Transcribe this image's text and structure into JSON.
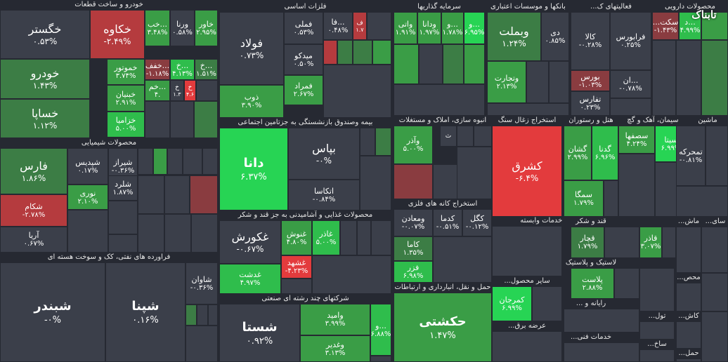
{
  "colors": {
    "background": "#262932",
    "neutral": "#3b3f4a",
    "g1": "#3c7d45",
    "g2": "#3a9d46",
    "g3": "#2fbd4c",
    "g4": "#27d454",
    "r1": "#8a3c40",
    "r2": "#b53b3e",
    "r3": "#e33b3d"
  },
  "logo": {
    "text": "تابناک"
  },
  "chart_data": {
    "type": "treemap",
    "sectors": [
      {
        "name": "خودرو و ساخت قطعات",
        "stocks": [
          {
            "name": "خگستر",
            "change": "۰.۵۳%",
            "color": "neutral"
          },
          {
            "name": "خکاوه",
            "change": "-۲.۴۹%",
            "color": "r2"
          },
          {
            "name": "خودرو",
            "change": "۱.۴۳%",
            "color": "g1"
          },
          {
            "name": "خموتور",
            "change": "۳.۷۴%",
            "color": "g2"
          },
          {
            "name": "خبنیان",
            "change": "۲.۹۱%",
            "color": "g2"
          },
          {
            "name": "خزامیا",
            "change": "۵.۰۰%",
            "color": "g3"
          },
          {
            "name": "خساپا",
            "change": "۱.۱۲%",
            "color": "g1"
          },
          {
            "name": "خب...",
            "change": "۳.۴۸%",
            "color": "g2"
          },
          {
            "name": "ورنا",
            "change": "۰.۵۸%",
            "color": "neutral"
          },
          {
            "name": "خاور",
            "change": "۲.۹۵%",
            "color": "g2"
          },
          {
            "name": "خفف...",
            "change": "-۱.۱۸%",
            "color": "r1"
          },
          {
            "name": "خ...",
            "change": "۴.۱۳%",
            "color": "g3"
          },
          {
            "name": "خ...",
            "change": "۱.۵۱%",
            "color": "g1"
          },
          {
            "name": "خم...",
            "change": "۴.",
            "color": "g2"
          },
          {
            "name": "خ",
            "change": "۴.۶",
            "color": "r3"
          },
          {
            "name": "خ",
            "change": "۱.۳",
            "color": "neutral"
          }
        ]
      },
      {
        "name": "محصولات شیمیایی",
        "stocks": [
          {
            "name": "فارس",
            "change": "۱.۸۶%",
            "color": "g1"
          },
          {
            "name": "شپدیس",
            "change": "۰.۱۷%",
            "color": "neutral"
          },
          {
            "name": "شیراز",
            "change": "-۰.۳۶%",
            "color": "neutral"
          },
          {
            "name": "نوری",
            "change": "۲.۱۰%",
            "color": "g2"
          },
          {
            "name": "شلرد",
            "change": "۱.۸۷%",
            "color": "neutral"
          },
          {
            "name": "شکام",
            "change": "-۲.۷۸%",
            "color": "r2"
          },
          {
            "name": "آریا",
            "change": "۰.۶۷%",
            "color": "neutral"
          }
        ]
      },
      {
        "name": "فراورده های نفتی، کک و سوخت هسته ای",
        "stocks": [
          {
            "name": "شبندر",
            "change": "-۰%",
            "color": "neutral"
          },
          {
            "name": "شپنا",
            "change": "۰.۱۶%",
            "color": "neutral"
          },
          {
            "name": "شاوان",
            "change": "-۰.۳۶%",
            "color": "neutral"
          }
        ]
      },
      {
        "name": "فلزات اساسی",
        "stocks": [
          {
            "name": "فولاد",
            "change": "۰.۷۳%",
            "color": "neutral"
          },
          {
            "name": "فملی",
            "change": "۰.۵۳%",
            "color": "neutral"
          },
          {
            "name": "میدکو",
            "change": "۰.۵۰%",
            "color": "neutral"
          },
          {
            "name": "فمراد",
            "change": "۲.۶۷%",
            "color": "g2"
          },
          {
            "name": "ذوب",
            "change": "۳.۹۰%",
            "color": "g2"
          },
          {
            "name": "فا...",
            "change": "۰.۴۸%",
            "color": "neutral"
          },
          {
            "name": "ف",
            "change": "۱.۷",
            "color": "r2"
          }
        ]
      },
      {
        "name": "سرمایه گذاریها",
        "stocks": [
          {
            "name": "واتی",
            "change": "۱.۹۱%",
            "color": "g2"
          },
          {
            "name": "ودانا",
            "change": "۱.۹۷%",
            "color": "g2"
          },
          {
            "name": "و...",
            "change": "۱.۷۸%",
            "color": "g2"
          },
          {
            "name": "و...",
            "change": "۶.۹۵%",
            "color": "g4"
          }
        ]
      },
      {
        "name": "بانکها و موسسات اعتباری",
        "stocks": [
          {
            "name": "وبملت",
            "change": "۱.۲۴%",
            "color": "g1"
          },
          {
            "name": "دی",
            "change": "۰.۸۵%",
            "color": "neutral"
          },
          {
            "name": "وتجارت",
            "change": "۲.۱۳%",
            "color": "g2"
          }
        ]
      },
      {
        "name": "فعالیتهای ک...",
        "stocks": [
          {
            "name": "کالا",
            "change": "-۰.۲۸%",
            "color": "neutral"
          },
          {
            "name": "فرابورس",
            "change": "۰.۲۵%",
            "color": "neutral"
          },
          {
            "name": "بورس",
            "change": "-۱.۰۳%",
            "color": "r1"
          },
          {
            "name": "ان...",
            "change": "-۰.۷۸%",
            "color": "neutral"
          },
          {
            "name": "تفارس",
            "change": "۰.۲۳%",
            "color": "neutral"
          }
        ]
      },
      {
        "name": "محصولات دارویی",
        "stocks": [
          {
            "name": "...سکت",
            "change": "-۱.۴۳%",
            "color": "r1"
          },
          {
            "name": "د...",
            "change": "۴.۹۹%",
            "color": "g3"
          }
        ]
      },
      {
        "name": "بیمه وصندوق بازنشستگی به جزتامین اجتماعی",
        "stocks": [
          {
            "name": "دانا",
            "change": "۶.۳۷%",
            "color": "g4"
          },
          {
            "name": "بپاس",
            "change": "-۰%",
            "color": "neutral"
          },
          {
            "name": "اتکاسا",
            "change": "-۰.۸۴%",
            "color": "neutral"
          }
        ]
      },
      {
        "name": "انبوه سازی، املاک و مستغلات",
        "stocks": [
          {
            "name": "وآذر",
            "change": "۵.۰۰%",
            "color": "g2"
          },
          {
            "name": "ث",
            "change": "",
            "color": "neutral"
          }
        ]
      },
      {
        "name": "استخراج زغال سنگ",
        "stocks": [
          {
            "name": "کشرق",
            "change": "-۶.۴%",
            "color": "r3"
          }
        ]
      },
      {
        "name": "حمل و نقل، انبارداری و ارتباطات",
        "stocks": [
          {
            "name": "حکشتی",
            "change": "۱.۴۷%",
            "color": "g2"
          }
        ]
      },
      {
        "name": "سیمان، آهک و گچ",
        "stocks": [
          {
            "name": "سصفها",
            "change": "۴.۲۴%",
            "color": "g2"
          },
          {
            "name": "سیتا",
            "change": "۶.۹۹%",
            "color": "g4"
          }
        ]
      },
      {
        "name": "هتل و رستوران",
        "stocks": [
          {
            "name": "گشان",
            "change": "۲.۹۹%",
            "color": "g2"
          },
          {
            "name": "گدنا",
            "change": "۶.۹۶%",
            "color": "g3"
          },
          {
            "name": "سمگا",
            "change": "۱.۷۹%",
            "color": "g2"
          }
        ]
      },
      {
        "name": "ماشین",
        "stocks": [
          {
            "name": "تمحرکه",
            "change": "-۰.۸۱%",
            "color": "neutral"
          }
        ]
      },
      {
        "name": "محصولات غذایی و آشامیدنی به جز قند و شکر",
        "stocks": [
          {
            "name": "غکورش",
            "change": "-۰.۶۷%",
            "color": "neutral"
          },
          {
            "name": "غنوش",
            "change": "۴.۸۰%",
            "color": "g2"
          },
          {
            "name": "غاذر",
            "change": "۵.۰۰%",
            "color": "g3"
          },
          {
            "name": "غشهد",
            "change": "-۴.۲۳%",
            "color": "r3"
          },
          {
            "name": "غدشت",
            "change": "۴.۹۷%",
            "color": "g3"
          }
        ]
      },
      {
        "name": "شرکتهای چند رشته ای صنعتی",
        "stocks": [
          {
            "name": "شستا",
            "change": "۰.۹۲%",
            "color": "neutral"
          },
          {
            "name": "وامید",
            "change": "۳.۹۹%",
            "color": "g2"
          },
          {
            "name": "وغدیر",
            "change": "۳.۱۳%",
            "color": "g2"
          },
          {
            "name": "و...",
            "change": "۶.۸۸%",
            "color": "g3"
          }
        ]
      },
      {
        "name": "استخراج کانه های فلزی",
        "stocks": [
          {
            "name": "ومعادن",
            "change": "-۰.۰۷%",
            "color": "neutral"
          },
          {
            "name": "کدما",
            "change": "-۰.۵۱%",
            "color": "neutral"
          },
          {
            "name": "کگل",
            "change": "-۰.۱۲%",
            "color": "neutral"
          },
          {
            "name": "کاما",
            "change": "۱.۳۵%",
            "color": "g1"
          },
          {
            "name": "فزر",
            "change": "۶.۹۸%",
            "color": "g3"
          }
        ]
      },
      {
        "name": "زراعت و خدمات وابسته",
        "stocks": []
      },
      {
        "name": "سایر محصول...",
        "stocks": [
          {
            "name": "کمرجان",
            "change": "۶.۹۹%",
            "color": "g4"
          }
        ]
      },
      {
        "name": "عرضه برق...",
        "stocks": []
      },
      {
        "name": "قند و شکر",
        "stocks": [
          {
            "name": "قچار",
            "change": "۱.۷۹%",
            "color": "g1"
          },
          {
            "name": "قاذر",
            "change": "۳.۰۷%",
            "color": "g2"
          }
        ]
      },
      {
        "name": "لاستیک و پلاستیک",
        "stocks": [
          {
            "name": "پلاست",
            "change": "۲.۸۸%",
            "color": "g2"
          }
        ]
      },
      {
        "name": "رایانه و ...",
        "stocks": []
      },
      {
        "name": "خدمات فنی...",
        "stocks": []
      },
      {
        "name": "محص...",
        "stocks": []
      },
      {
        "name": "کاش...",
        "stocks": []
      },
      {
        "name": "تول...",
        "stocks": []
      },
      {
        "name": "ساخ...",
        "stocks": []
      },
      {
        "name": "حمل...",
        "stocks": []
      },
      {
        "name": "پیم...",
        "stocks": []
      },
      {
        "name": "ماش...",
        "stocks": []
      },
      {
        "name": "سای...",
        "stocks": []
      }
    ]
  }
}
